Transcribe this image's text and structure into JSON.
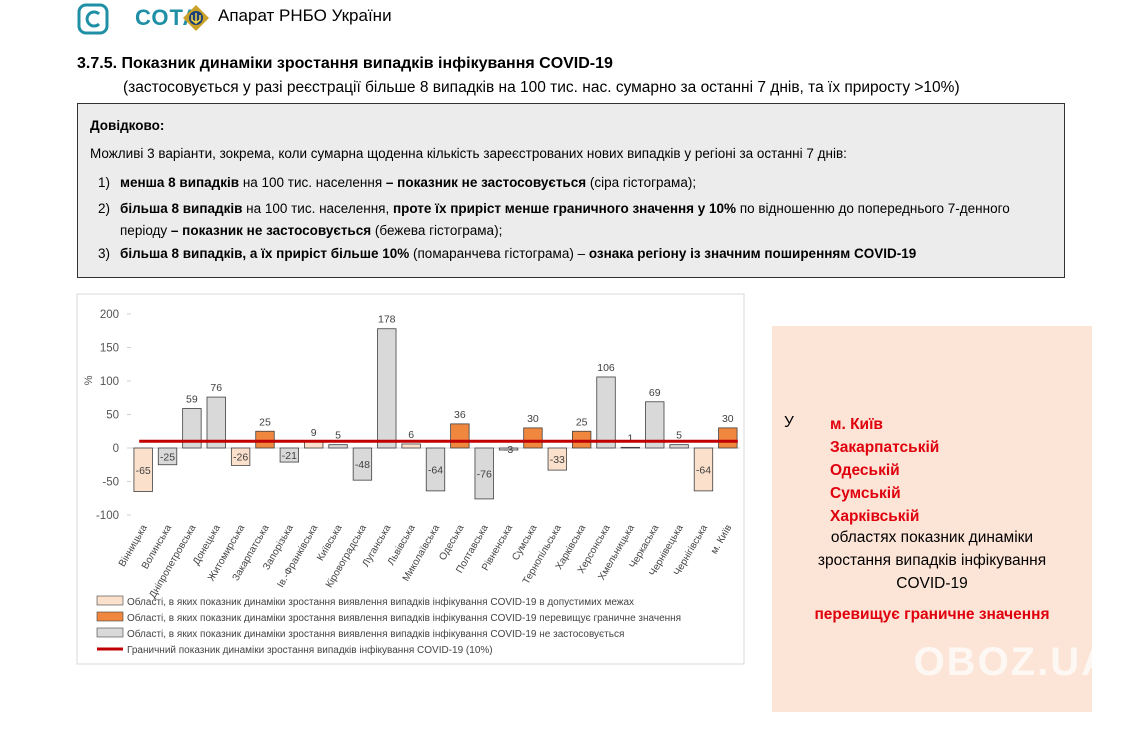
{
  "header": {
    "brand": "СОТА",
    "org": "Апарат РНБО України"
  },
  "section": {
    "title": "3.7.5. Показник динаміки зростання випадків інфікування COVID-19",
    "subtitle": "(застосовується у разі реєстрації більше 8 випадків на 100 тис. нас. сумарно за останні 7 днів, та їх приросту >10%)"
  },
  "info": {
    "heading": "Довідково:",
    "intro": "Можливі 3 варіанти, зокрема, коли сумарна щоденна кількість зареєстрованих нових випадків у регіоні за останні 7 днів:",
    "items": [
      {
        "marker": "1)",
        "segments": [
          {
            "text": "менша 8 випадків",
            "bold": true
          },
          {
            "text": " на 100 тис. населення ",
            "bold": false
          },
          {
            "text": "– показник не застосовується",
            "bold": true
          },
          {
            "text": " (сіра гістограма);",
            "bold": false
          }
        ]
      },
      {
        "marker": "2)",
        "segments": [
          {
            "text": "більша 8 випадків",
            "bold": true
          },
          {
            "text": " на 100 тис. населення, ",
            "bold": false
          },
          {
            "text": "проте їх приріст менше граничного значення у 10%",
            "bold": true
          },
          {
            "text": "  по відношенню до попереднього 7-денного періоду ",
            "bold": false
          },
          {
            "text": "– показник не застосовується",
            "bold": true
          },
          {
            "text": " (бежева гістограма);",
            "bold": false
          }
        ]
      },
      {
        "marker": "3)",
        "segments": [
          {
            "text": "більша 8 випадків, а їх приріст більше 10%",
            "bold": true
          },
          {
            "text": " (помаранчева гістограма) – ",
            "bold": false
          },
          {
            "text": "ознака регіону із значним поширенням  COVID-19",
            "bold": true
          }
        ]
      }
    ]
  },
  "chart_data": {
    "type": "bar",
    "y_label": "%",
    "categories": [
      "Вінницька",
      "Волинська",
      "Дніпропетровська",
      "Донецька",
      "Житомирська",
      "Закарпатська",
      "Запорізька",
      "Ів.-Франківська",
      "Київська",
      "Кіровоградська",
      "Луганська",
      "Львівська",
      "Миколаївська",
      "Одеська",
      "Полтавська",
      "Рівненська",
      "Сумська",
      "Тернопільська",
      "Харківська",
      "Херсонська",
      "Хмельницька",
      "Черкаська",
      "Чернівецька",
      "Чернігівська",
      "м. Київ"
    ],
    "series": [
      {
        "name": "Області, в яких показник динаміки зростання виявлення випадків інфікування COVID-19 в допустимих межах",
        "color": "#fbe0cc",
        "values": [
          -65,
          null,
          null,
          null,
          -26,
          null,
          null,
          9,
          null,
          null,
          null,
          6,
          null,
          null,
          null,
          null,
          null,
          -33,
          null,
          null,
          null,
          null,
          null,
          -64,
          null
        ]
      },
      {
        "name": "Області, в яких показник динаміки зростання виявлення випадків інфікування COVID-19 перевищує граничне значення",
        "color": "#f0873f",
        "values": [
          null,
          null,
          null,
          null,
          null,
          25,
          null,
          null,
          null,
          null,
          null,
          null,
          null,
          36,
          null,
          null,
          30,
          null,
          25,
          null,
          null,
          null,
          null,
          null,
          30
        ]
      },
      {
        "name": "Області, в яких показник динаміки зростання виявлення випадків інфікування COVID-19 не застосовується",
        "color": "#d9d9d9",
        "values": [
          null,
          -25,
          59,
          76,
          null,
          null,
          -21,
          null,
          5,
          -48,
          178,
          null,
          -64,
          null,
          -76,
          -3,
          null,
          null,
          null,
          106,
          1,
          69,
          5,
          null,
          null
        ]
      }
    ],
    "threshold": {
      "name": "Граничний показник динаміки зростання випадків інфікування COVID-19 (10%)",
      "value": 10,
      "color": "#c00000"
    },
    "ylim": [
      -100,
      200
    ],
    "yticks": [
      -100,
      -50,
      0,
      50,
      100,
      150,
      200
    ],
    "grid": false
  },
  "panel": {
    "prefix": "У",
    "regions": [
      "м. Київ",
      "Закарпатській",
      "Одеській",
      "Сумській",
      "Харківській"
    ],
    "lines": [
      "областях показник динаміки",
      "зростання випадків інфікування",
      "COVID-19"
    ],
    "conclusion": "перевищує граничне значення"
  },
  "watermark": "OBOZ.UA"
}
